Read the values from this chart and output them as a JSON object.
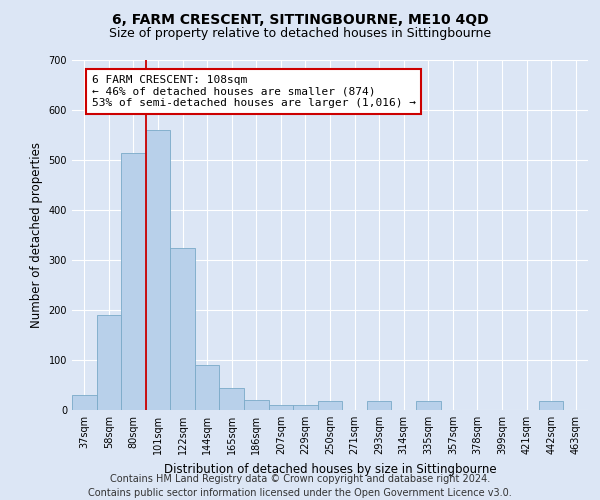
{
  "title": "6, FARM CRESCENT, SITTINGBOURNE, ME10 4QD",
  "subtitle": "Size of property relative to detached houses in Sittingbourne",
  "xlabel": "Distribution of detached houses by size in Sittingbourne",
  "ylabel": "Number of detached properties",
  "footer_line1": "Contains HM Land Registry data © Crown copyright and database right 2024.",
  "footer_line2": "Contains public sector information licensed under the Open Government Licence v3.0.",
  "categories": [
    "37sqm",
    "58sqm",
    "80sqm",
    "101sqm",
    "122sqm",
    "144sqm",
    "165sqm",
    "186sqm",
    "207sqm",
    "229sqm",
    "250sqm",
    "271sqm",
    "293sqm",
    "314sqm",
    "335sqm",
    "357sqm",
    "378sqm",
    "399sqm",
    "421sqm",
    "442sqm",
    "463sqm"
  ],
  "values": [
    30,
    190,
    515,
    560,
    325,
    90,
    45,
    20,
    10,
    10,
    18,
    0,
    18,
    0,
    18,
    0,
    0,
    0,
    0,
    18,
    0
  ],
  "bar_color": "#b8d0ea",
  "bar_edge_color": "#7aaac8",
  "vline_x": 2.5,
  "highlight_label": "6 FARM CRESCENT: 108sqm",
  "annotation_line1": "← 46% of detached houses are smaller (874)",
  "annotation_line2": "53% of semi-detached houses are larger (1,016) →",
  "vline_color": "#cc0000",
  "annotation_box_facecolor": "#ffffff",
  "annotation_box_edgecolor": "#cc0000",
  "ylim": [
    0,
    700
  ],
  "yticks": [
    0,
    100,
    200,
    300,
    400,
    500,
    600,
    700
  ],
  "background_color": "#dce6f5",
  "grid_color": "#ffffff",
  "title_fontsize": 10,
  "subtitle_fontsize": 9,
  "axis_label_fontsize": 8.5,
  "tick_fontsize": 7,
  "footer_fontsize": 7,
  "annot_fontsize": 8
}
